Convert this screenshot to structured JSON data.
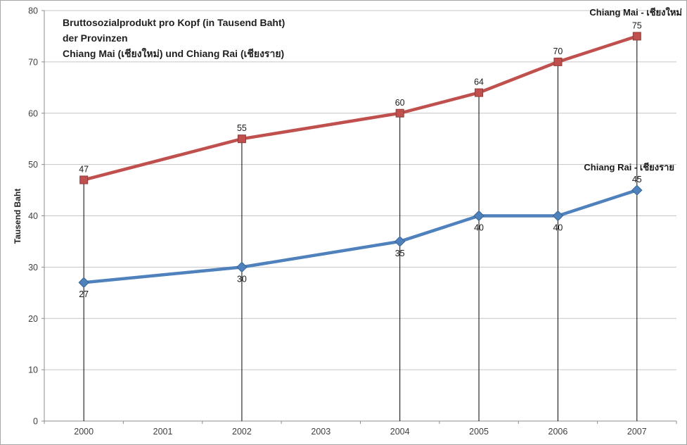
{
  "chart_data": {
    "type": "line",
    "title_lines": [
      "Bruttosozialprodukt pro Kopf (in Tausend Baht)",
      "der Provinzen",
      "Chiang Mai (เชียงใหม่) und Chiang Rai (เชียงราย)"
    ],
    "ylabel": "Tausend Baht",
    "xlabel": "",
    "categories": [
      "2000",
      "2001",
      "2002",
      "2003",
      "2004",
      "2005",
      "2006",
      "2007"
    ],
    "ylim": [
      0,
      80
    ],
    "yticks": [
      0,
      10,
      20,
      30,
      40,
      50,
      60,
      70,
      80
    ],
    "grid": "horizontal",
    "drop_lines": true,
    "legend_position": "inline-right-of-plot",
    "series": [
      {
        "name": "Chiang Mai - เชียงใหม่",
        "color": "#C0504D",
        "marker_border": "#8E3B38",
        "marker": "square",
        "x": [
          "2000",
          "2002",
          "2004",
          "2005",
          "2006",
          "2007"
        ],
        "values": [
          47,
          55,
          60,
          64,
          70,
          75
        ],
        "label_positions": [
          "above",
          "above",
          "above",
          "above",
          "above",
          "above"
        ]
      },
      {
        "name": "Chiang Rai - เชียงราย",
        "color": "#4F81BD",
        "marker_border": "#3A6292",
        "marker": "diamond",
        "x": [
          "2000",
          "2002",
          "2004",
          "2005",
          "2006",
          "2007"
        ],
        "values": [
          27,
          30,
          35,
          40,
          40,
          45
        ],
        "label_positions": [
          "below",
          "below",
          "below",
          "below",
          "below",
          "above"
        ]
      }
    ]
  },
  "colors": {
    "background": "#FFFFFF",
    "border": "#A6A6A6",
    "grid": "#C6C6C6",
    "axis": "#8C8C8C",
    "drop_line": "#000000",
    "title": "#1F1F1F",
    "tick_label": "#3F3F3F",
    "data_label": "#1A1A1A",
    "series_label": "#1A1A1A"
  }
}
